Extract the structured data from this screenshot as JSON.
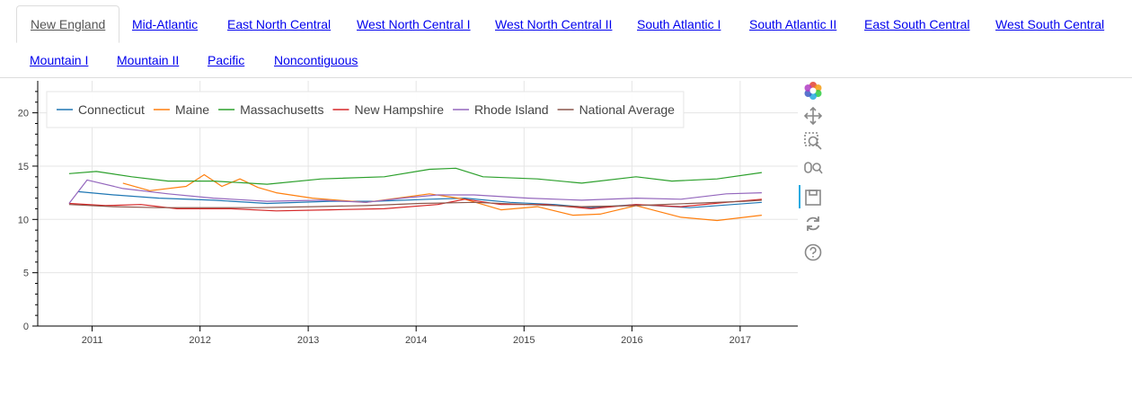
{
  "tabs": [
    {
      "label": "New England",
      "active": true
    },
    {
      "label": "Mid-Atlantic"
    },
    {
      "label": "East North Central"
    },
    {
      "label": "West North Central I"
    },
    {
      "label": "West North Central II"
    },
    {
      "label": "South Atlantic I"
    },
    {
      "label": "South Atlantic II"
    },
    {
      "label": "East South Central"
    },
    {
      "label": "West South Central"
    },
    {
      "label": "Mountain I"
    },
    {
      "label": "Mountain II"
    },
    {
      "label": "Pacific"
    },
    {
      "label": "Noncontiguous"
    }
  ],
  "toolbar": {
    "tools": [
      "bokeh-logo-icon",
      "pan-icon",
      "box-zoom-icon",
      "wheel-zoom-icon",
      "save-icon",
      "reset-icon",
      "help-icon"
    ],
    "active_color": "#26aae1"
  },
  "chart_data": {
    "type": "line",
    "title": "",
    "xlabel": "",
    "ylabel": "",
    "xlim": [
      "2010-07-01",
      "2017-07-15"
    ],
    "ylim": [
      0,
      23
    ],
    "x_ticks": [
      "2011",
      "2012",
      "2013",
      "2014",
      "2015",
      "2016",
      "2017"
    ],
    "y_ticks": [
      "0",
      "5",
      "10",
      "15",
      "20"
    ],
    "grid": true,
    "legend_position": "top-left",
    "series": [
      {
        "name": "Connecticut",
        "color": "#1f77b4",
        "x": [
          "2010-11",
          "2011-03",
          "2011-08",
          "2012-02",
          "2012-08",
          "2013-03",
          "2013-08",
          "2014-02",
          "2014-06",
          "2014-11",
          "2015-04",
          "2015-08",
          "2016-01",
          "2016-07",
          "2017-03"
        ],
        "y": [
          12.6,
          12.3,
          12.0,
          11.8,
          11.5,
          11.7,
          11.7,
          11.9,
          12.0,
          11.6,
          11.4,
          11.1,
          11.4,
          11.1,
          11.6
        ]
      },
      {
        "name": "Maine",
        "color": "#ff7f0e",
        "x": [
          "2011-04",
          "2011-07",
          "2011-11",
          "2012-01",
          "2012-03",
          "2012-05",
          "2012-07",
          "2012-09",
          "2013-01",
          "2013-07",
          "2014-02",
          "2014-06",
          "2014-10",
          "2015-02",
          "2015-06",
          "2015-09",
          "2016-01",
          "2016-06",
          "2016-10",
          "2017-03"
        ],
        "y": [
          13.4,
          12.7,
          13.1,
          14.2,
          13.1,
          13.8,
          13.0,
          12.5,
          12.0,
          11.6,
          12.4,
          11.9,
          10.9,
          11.2,
          10.4,
          10.5,
          11.3,
          10.2,
          9.9,
          10.4
        ]
      },
      {
        "name": "Massachusetts",
        "color": "#2ca02c",
        "x": [
          "2010-10",
          "2011-01",
          "2011-05",
          "2011-09",
          "2012-02",
          "2012-08",
          "2013-02",
          "2013-09",
          "2014-02",
          "2014-05",
          "2014-08",
          "2015-02",
          "2015-07",
          "2016-01",
          "2016-05",
          "2016-10",
          "2017-03"
        ],
        "y": [
          14.3,
          14.5,
          14.0,
          13.6,
          13.6,
          13.3,
          13.8,
          14.0,
          14.7,
          14.8,
          14.0,
          13.8,
          13.4,
          14.0,
          13.6,
          13.8,
          14.4
        ]
      },
      {
        "name": "New Hampshire",
        "color": "#d62728",
        "x": [
          "2010-10",
          "2011-02",
          "2011-06",
          "2011-10",
          "2012-04",
          "2012-09",
          "2013-03",
          "2013-09",
          "2014-03",
          "2014-06",
          "2014-10",
          "2015-03",
          "2015-08",
          "2016-01",
          "2016-06",
          "2016-11",
          "2017-03"
        ],
        "y": [
          11.5,
          11.3,
          11.4,
          11.0,
          11.0,
          10.8,
          10.9,
          11.0,
          11.4,
          11.9,
          11.4,
          11.4,
          11.0,
          11.4,
          11.2,
          11.6,
          11.9
        ]
      },
      {
        "name": "Rhode Island",
        "color": "#9467bd",
        "x": [
          "2010-10",
          "2010-12",
          "2011-04",
          "2011-09",
          "2012-02",
          "2012-08",
          "2013-02",
          "2013-07",
          "2013-11",
          "2014-03",
          "2014-07",
          "2015-01",
          "2015-07",
          "2016-01",
          "2016-06",
          "2016-11",
          "2017-03"
        ],
        "y": [
          11.5,
          13.7,
          12.9,
          12.4,
          12.0,
          11.7,
          11.8,
          11.6,
          12.0,
          12.3,
          12.3,
          12.0,
          11.8,
          12.0,
          11.9,
          12.4,
          12.5
        ]
      },
      {
        "name": "National Average",
        "color": "#8c564b",
        "x": [
          "2010-10",
          "2011-03",
          "2011-08",
          "2012-01",
          "2012-07",
          "2013-01",
          "2013-07",
          "2014-01",
          "2014-07",
          "2015-01",
          "2015-07",
          "2016-01",
          "2016-07",
          "2017-01",
          "2017-03"
        ],
        "y": [
          11.4,
          11.2,
          11.1,
          11.1,
          11.1,
          11.2,
          11.3,
          11.5,
          11.6,
          11.4,
          11.2,
          11.3,
          11.5,
          11.7,
          11.8
        ]
      }
    ]
  }
}
